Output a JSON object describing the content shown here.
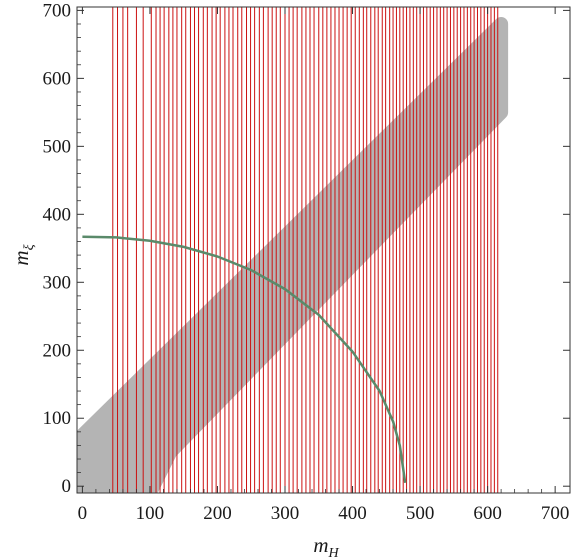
{
  "chart_data": {
    "type": "scatter",
    "title": "",
    "xlabel": "m_H",
    "ylabel": "m_ξ",
    "xlabel_main": "m",
    "xlabel_sub": "H",
    "ylabel_main": "m",
    "ylabel_sub": "ξ",
    "xlim": [
      -8,
      722
    ],
    "ylim": [
      -10,
      705
    ],
    "x_ticks": [
      0,
      100,
      200,
      300,
      400,
      500,
      600,
      700
    ],
    "y_ticks": [
      0,
      100,
      200,
      300,
      400,
      500,
      600,
      700
    ],
    "grid": false,
    "colors": {
      "band": "#b4b4b4",
      "vertical_lines": "#cc1111",
      "curve": "#5a8a6a",
      "frame": "#333333"
    },
    "vertical_lines": {
      "description_free": true,
      "x_values": [
        45,
        52,
        60,
        67,
        80,
        90,
        102,
        109,
        115,
        121,
        128,
        134,
        140,
        147,
        153,
        160,
        166,
        172,
        179,
        185,
        192,
        198,
        204,
        211,
        217,
        223,
        230,
        236,
        243,
        249,
        255,
        262,
        268,
        275,
        281,
        287,
        293,
        300,
        306,
        312,
        318,
        325,
        331,
        337,
        343,
        350,
        356,
        362,
        368,
        374,
        380,
        386,
        392,
        398,
        404,
        410,
        416,
        421,
        427,
        433,
        438,
        444,
        449,
        455,
        460,
        465,
        470,
        475,
        480,
        485,
        490,
        495,
        500,
        505,
        510,
        515,
        520,
        525,
        530,
        535,
        540,
        545,
        550,
        555,
        560,
        565,
        570,
        575,
        580,
        585,
        590,
        595,
        600,
        605,
        610,
        615
      ]
    },
    "band": {
      "lower_edge": [
        [
          0,
          -10
        ],
        [
          100,
          -10
        ],
        [
          130,
          50
        ],
        [
          620,
          550
        ]
      ],
      "upper_edge": [
        [
          0,
          75
        ],
        [
          620,
          680
        ]
      ]
    },
    "series": [
      {
        "type": "line",
        "x": [
          0,
          50,
          100,
          150,
          200,
          250,
          300,
          350,
          400,
          440,
          460,
          470,
          478
        ],
        "y": [
          367,
          366,
          361,
          352,
          338,
          318,
          290,
          252,
          198,
          140,
          95,
          60,
          5
        ]
      }
    ]
  }
}
